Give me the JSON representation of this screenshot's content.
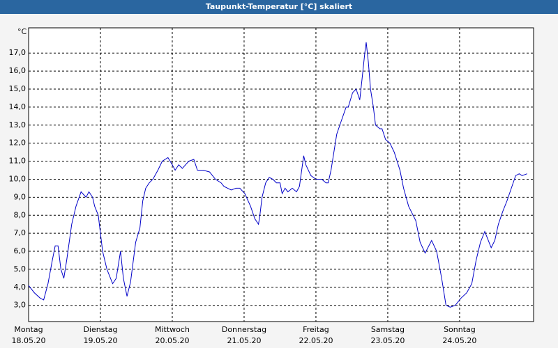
{
  "chart_data": {
    "type": "line",
    "title": "Taupunkt-Temperatur [°C] skaliert",
    "unit": "°C",
    "color": "#0000c8",
    "grid": true,
    "xlim": [
      0,
      7.03
    ],
    "xticks": [
      {
        "value": 0,
        "label": "Montag"
      },
      {
        "value": 1,
        "label": "Dienstag"
      },
      {
        "value": 2,
        "label": "Mittwoch"
      },
      {
        "value": 3,
        "label": "Donnerstag"
      },
      {
        "value": 4,
        "label": "Freitag"
      },
      {
        "value": 5,
        "label": "Samstag"
      },
      {
        "value": 6,
        "label": "Sonntag"
      }
    ],
    "dates": [
      "18.05.20",
      "19.05.20",
      "20.05.20",
      "21.05.20",
      "22.05.20",
      "23.05.20",
      "24.05.20"
    ],
    "ylim": [
      2.1,
      18.4
    ],
    "yticks": [
      {
        "value": 3,
        "label": "3,0"
      },
      {
        "value": 4,
        "label": "4,0"
      },
      {
        "value": 5,
        "label": "5,0"
      },
      {
        "value": 6,
        "label": "6,0"
      },
      {
        "value": 7,
        "label": "7,0"
      },
      {
        "value": 8,
        "label": "8,0"
      },
      {
        "value": 9,
        "label": "9,0"
      },
      {
        "value": 10,
        "label": "10,0"
      },
      {
        "value": 11,
        "label": "11,0"
      },
      {
        "value": 12,
        "label": "12,0"
      },
      {
        "value": 13,
        "label": "13,0"
      },
      {
        "value": 14,
        "label": "14,0"
      },
      {
        "value": 15,
        "label": "15,0"
      },
      {
        "value": 16,
        "label": "16,0"
      },
      {
        "value": 17,
        "label": "17,0"
      }
    ],
    "x": [
      0,
      0.08,
      0.16,
      0.21,
      0.27,
      0.33,
      0.37,
      0.41,
      0.45,
      0.49,
      0.53,
      0.6,
      0.66,
      0.73,
      0.8,
      0.84,
      0.89,
      0.92,
      0.97,
      1.03,
      1.09,
      1.17,
      1.22,
      1.28,
      1.32,
      1.37,
      1.42,
      1.49,
      1.55,
      1.59,
      1.63,
      1.68,
      1.73,
      1.8,
      1.86,
      1.94,
      2,
      2.04,
      2.09,
      2.14,
      2.23,
      2.3,
      2.35,
      2.43,
      2.52,
      2.6,
      2.68,
      2.72,
      2.82,
      2.89,
      2.94,
      3.01,
      3.09,
      3.15,
      3.2,
      3.22,
      3.25,
      3.3,
      3.35,
      3.4,
      3.45,
      3.5,
      3.53,
      3.57,
      3.61,
      3.67,
      3.73,
      3.77,
      3.83,
      3.86,
      3.93,
      4,
      4.08,
      4.14,
      4.17,
      4.21,
      4.25,
      4.29,
      4.35,
      4.42,
      4.45,
      4.51,
      4.56,
      4.61,
      4.64,
      4.68,
      4.7,
      4.73,
      4.76,
      4.8,
      4.83,
      4.89,
      4.92,
      4.97,
      5.03,
      5.09,
      5.17,
      5.22,
      5.29,
      5.39,
      5.45,
      5.52,
      5.61,
      5.68,
      5.75,
      5.81,
      5.87,
      5.94,
      6.02,
      6.1,
      6.17,
      6.23,
      6.29,
      6.35,
      6.39,
      6.44,
      6.49,
      6.54,
      6.6,
      6.66,
      6.72,
      6.78,
      6.83,
      6.87,
      6.94
    ],
    "values": [
      4.1,
      3.7,
      3.4,
      3.3,
      4.2,
      5.5,
      6.3,
      6.3,
      5.0,
      4.5,
      5.5,
      7.5,
      8.5,
      9.3,
      9.0,
      9.3,
      9.0,
      8.5,
      8.0,
      6.0,
      5.0,
      4.2,
      4.5,
      6.0,
      4.5,
      3.5,
      4.3,
      6.5,
      7.3,
      8.8,
      9.5,
      9.8,
      10.0,
      10.5,
      11.0,
      11.2,
      10.8,
      10.5,
      10.8,
      10.6,
      11.0,
      11.1,
      10.5,
      10.5,
      10.4,
      10.0,
      9.8,
      9.6,
      9.4,
      9.5,
      9.5,
      9.2,
      8.5,
      7.8,
      7.5,
      8.0,
      9.0,
      9.8,
      10.1,
      10.0,
      9.8,
      9.8,
      9.2,
      9.5,
      9.3,
      9.5,
      9.3,
      9.6,
      11.3,
      10.8,
      10.2,
      10.0,
      10.0,
      9.8,
      9.8,
      10.5,
      11.5,
      12.5,
      13.2,
      14.0,
      14.0,
      14.8,
      15.0,
      14.4,
      15.5,
      17.0,
      17.6,
      16.5,
      15.0,
      14.0,
      13.0,
      12.8,
      12.8,
      12.2,
      12.0,
      11.5,
      10.5,
      9.5,
      8.5,
      7.7,
      6.5,
      5.9,
      6.6,
      6.0,
      4.5,
      3.0,
      2.9,
      3.0,
      3.4,
      3.7,
      4.2,
      5.5,
      6.5,
      7.1,
      6.7,
      6.2,
      6.6,
      7.5,
      8.2,
      8.8,
      9.5,
      10.2,
      10.3,
      10.2,
      10.3
    ]
  }
}
